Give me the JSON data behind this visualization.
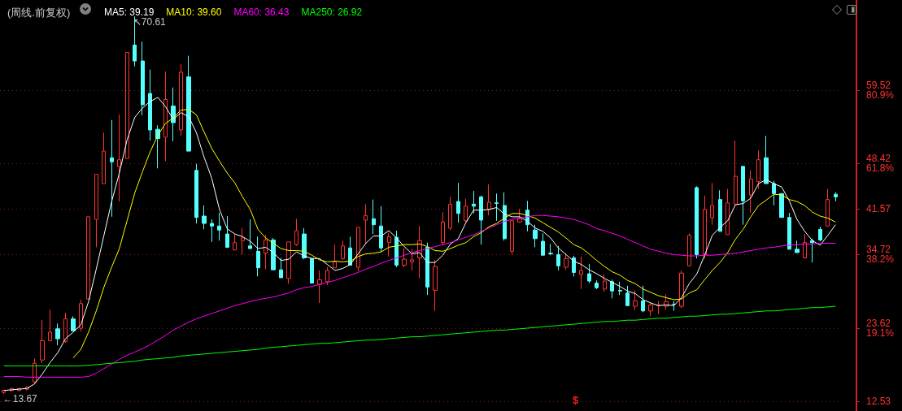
{
  "chart_data": {
    "type": "candlestick",
    "title": "(周线.前复权)",
    "categories": [
      null,
      null,
      null,
      null,
      null,
      null,
      null,
      null,
      null,
      null,
      null,
      null,
      null,
      null,
      null,
      null,
      null,
      null,
      null,
      null,
      null,
      null,
      null,
      null,
      null,
      null,
      null,
      null,
      null,
      null,
      null,
      null,
      null,
      null,
      null,
      null,
      null,
      null,
      null,
      null,
      null,
      null,
      null,
      null,
      null,
      null,
      null,
      null,
      null,
      null,
      null,
      null,
      null,
      null,
      null,
      null,
      null,
      null,
      null,
      null,
      null,
      null,
      null,
      null,
      null,
      null,
      null,
      null,
      null,
      null,
      null,
      null,
      null,
      null,
      null,
      null,
      null,
      null,
      null,
      null,
      null,
      null,
      null,
      null,
      null,
      null,
      null,
      null,
      null,
      null,
      null,
      null,
      null,
      null,
      null,
      null,
      null,
      null,
      null,
      null,
      null,
      null,
      null,
      null,
      null,
      null,
      null,
      null,
      null
    ],
    "ohlc": [
      [
        13.9,
        14.3,
        13.67,
        14.2
      ],
      [
        14.2,
        14.6,
        14.0,
        14.5
      ],
      [
        14.2,
        14.5,
        14.1,
        14.5
      ],
      [
        14.4,
        14.8,
        14.2,
        14.7
      ],
      [
        15.5,
        19.0,
        15.2,
        18.3
      ],
      [
        18.8,
        24.8,
        18.3,
        21.7
      ],
      [
        21.7,
        26.4,
        21.7,
        23.0
      ],
      [
        23.5,
        24.3,
        21.0,
        22.0
      ],
      [
        21.6,
        25.9,
        21.4,
        25.0
      ],
      [
        25.0,
        25.4,
        23.2,
        23.2
      ],
      [
        23.6,
        27.9,
        23.1,
        27.3
      ],
      [
        28.0,
        40.4,
        28.0,
        40.4
      ],
      [
        40.0,
        46.8,
        35.8,
        46.8
      ],
      [
        45.4,
        53.1,
        45.4,
        50.3
      ],
      [
        49.3,
        55.0,
        40.4,
        48.7
      ],
      [
        48.0,
        55.8,
        42.7,
        49.0
      ],
      [
        49.2,
        65.2,
        49.2,
        65.2
      ],
      [
        66.3,
        70.61,
        63.1,
        63.9
      ],
      [
        63.9,
        66.8,
        55.7,
        57.3
      ],
      [
        59.0,
        62.6,
        51.9,
        53.5
      ],
      [
        53.6,
        54.2,
        47.7,
        52.2
      ],
      [
        52.4,
        62.3,
        48.8,
        58.1
      ],
      [
        57.1,
        59.9,
        51.8,
        54.6
      ],
      [
        53.5,
        63.4,
        52.6,
        62.2
      ],
      [
        61.5,
        64.7,
        50.3,
        50.3
      ],
      [
        47.4,
        48.4,
        39.4,
        40.3
      ],
      [
        40.5,
        42.1,
        38.5,
        39.4
      ],
      [
        39.4,
        40.0,
        36.6,
        39.0
      ],
      [
        39.0,
        41.0,
        36.8,
        38.4
      ],
      [
        37.8,
        40.5,
        35.7,
        35.8
      ],
      [
        35.4,
        37.8,
        35.35,
        36.5
      ],
      [
        36.8,
        38.7,
        34.7,
        37.2
      ],
      [
        36.0,
        40.0,
        35.6,
        35.6
      ],
      [
        35.2,
        37.4,
        31.4,
        32.7
      ],
      [
        34.9,
        37.6,
        32.5,
        36.9
      ],
      [
        36.9,
        37.2,
        32.4,
        32.4
      ],
      [
        32.4,
        34.2,
        31.2,
        31.2
      ],
      [
        31.1,
        36.6,
        30.3,
        36.6
      ],
      [
        36.2,
        40.1,
        36.0,
        38.3
      ],
      [
        37.8,
        38.7,
        34.0,
        34.2
      ],
      [
        34.1,
        34.1,
        30.4,
        30.4
      ],
      [
        30.2,
        32.3,
        27.4,
        30.9
      ],
      [
        30.6,
        32.8,
        30.1,
        32.3
      ],
      [
        32.7,
        36.2,
        32.7,
        33.6
      ],
      [
        34.1,
        36.8,
        33.9,
        36.0
      ],
      [
        35.7,
        37.4,
        33.1,
        33.1
      ],
      [
        32.8,
        38.8,
        32.2,
        38.8
      ],
      [
        39.9,
        42.3,
        36.3,
        40.6
      ],
      [
        40.1,
        43.0,
        37.8,
        39.2
      ],
      [
        39.0,
        42.0,
        35.1,
        35.7
      ],
      [
        36.5,
        37.9,
        34.4,
        37.4
      ],
      [
        37.3,
        38.3,
        32.8,
        33.1
      ],
      [
        33.1,
        35.7,
        32.8,
        34.0
      ],
      [
        33.6,
        35.5,
        32.3,
        33.9
      ],
      [
        34.2,
        39.0,
        31.1,
        36.8
      ],
      [
        35.8,
        36.5,
        28.6,
        29.8
      ],
      [
        29.3,
        33.9,
        26.2,
        32.9
      ],
      [
        36.5,
        41.1,
        36.1,
        39.6
      ],
      [
        38.7,
        43.4,
        38.4,
        42.3
      ],
      [
        42.7,
        45.5,
        39.5,
        40.9
      ],
      [
        39.8,
        43.1,
        39.6,
        42.0
      ],
      [
        42.3,
        44.3,
        40.9,
        42.0
      ],
      [
        43.4,
        43.6,
        36.2,
        39.9
      ],
      [
        41.5,
        45.3,
        40.6,
        42.6
      ],
      [
        42.5,
        43.9,
        39.8,
        42.4
      ],
      [
        42.1,
        44.1,
        36.8,
        37.1
      ],
      [
        35.2,
        39.8,
        34.7,
        39.8
      ],
      [
        39.6,
        41.6,
        39.5,
        40.1
      ],
      [
        41.4,
        42.8,
        38.2,
        39.2
      ],
      [
        38.4,
        39.2,
        35.8,
        37.1
      ],
      [
        36.7,
        37.9,
        34.6,
        34.6
      ],
      [
        34.9,
        36.3,
        34.6,
        34.8
      ],
      [
        34.7,
        36.0,
        32.3,
        33.0
      ],
      [
        32.8,
        34.9,
        32.4,
        34.1
      ],
      [
        34.2,
        34.5,
        31.4,
        32.0
      ],
      [
        31.7,
        34.4,
        29.5,
        32.3
      ],
      [
        31.8,
        33.3,
        30.4,
        30.7
      ],
      [
        30.4,
        30.8,
        29.5,
        29.7
      ],
      [
        29.5,
        31.7,
        29.1,
        30.7
      ],
      [
        30.6,
        30.9,
        28.1,
        29.2
      ],
      [
        29.3,
        30.6,
        28.6,
        29.2
      ],
      [
        28.9,
        30.0,
        26.9,
        27.0
      ],
      [
        26.9,
        29.3,
        26.3,
        27.7
      ],
      [
        27.7,
        30.0,
        26.0,
        26.2
      ],
      [
        26.2,
        27.4,
        25.4,
        27.1
      ],
      [
        27.0,
        27.7,
        25.7,
        27.1
      ],
      [
        26.9,
        28.7,
        26.4,
        27.6
      ],
      [
        27.2,
        27.7,
        26.2,
        27.2
      ],
      [
        26.9,
        32.3,
        26.6,
        31.9
      ],
      [
        33.0,
        37.9,
        33.0,
        37.6
      ],
      [
        44.8,
        45.0,
        34.1,
        34.7
      ],
      [
        34.7,
        43.6,
        34.1,
        41.5
      ],
      [
        40.3,
        45.5,
        39.2,
        42.1
      ],
      [
        43.0,
        44.4,
        38.2,
        38.2
      ],
      [
        37.7,
        44.6,
        37.7,
        42.5
      ],
      [
        42.3,
        51.9,
        42.3,
        46.5
      ],
      [
        48.0,
        48.0,
        39.2,
        42.8
      ],
      [
        43.7,
        47.4,
        41.0,
        46.1
      ],
      [
        45.7,
        50.4,
        44.6,
        49.0
      ],
      [
        49.3,
        52.6,
        45.4,
        45.4
      ],
      [
        45.4,
        45.8,
        42.1,
        43.9
      ],
      [
        43.9,
        43.9,
        40.3,
        40.3
      ],
      [
        40.3,
        41.0,
        35.5,
        35.5
      ],
      [
        35.5,
        36.8,
        35.0,
        35.0
      ],
      [
        34.2,
        37.8,
        34.1,
        36.5
      ],
      [
        36.8,
        37.1,
        33.5,
        36.5
      ],
      [
        38.5,
        38.9,
        36.7,
        36.9
      ],
      [
        39.0,
        44.6,
        39.0,
        43.0
      ],
      [
        43.8,
        44.1,
        42.7,
        43.4
      ]
    ],
    "series": [
      {
        "type": "line",
        "name": "MA5: 39.19",
        "color": "#ffffff",
        "values": [
          14.2,
          14.3,
          14.4,
          14.5,
          15.2,
          16.7,
          18.4,
          19.9,
          22.0,
          23.0,
          24.1,
          27.6,
          32.5,
          37.6,
          42.7,
          47.0,
          52.0,
          55.4,
          56.8,
          57.8,
          58.4,
          57.0,
          55.1,
          56.1,
          55.5,
          53.1,
          49.4,
          46.2,
          41.5,
          38.6,
          37.8,
          37.4,
          36.7,
          35.6,
          35.8,
          35.0,
          33.8,
          34.0,
          35.1,
          34.5,
          34.1,
          34.1,
          33.2,
          32.3,
          32.6,
          33.2,
          34.8,
          36.4,
          37.5,
          37.5,
          38.3,
          37.2,
          35.9,
          34.8,
          35.0,
          33.5,
          33.5,
          34.6,
          36.3,
          37.1,
          39.5,
          41.4,
          41.4,
          41.5,
          41.8,
          40.8,
          40.4,
          40.4,
          39.7,
          38.7,
          38.2,
          37.2,
          35.7,
          34.7,
          33.7,
          33.2,
          32.4,
          31.8,
          31.1,
          30.5,
          29.9,
          29.2,
          28.8,
          27.9,
          27.4,
          27.0,
          27.1,
          27.0,
          28.2,
          30.3,
          31.8,
          34.6,
          37.6,
          38.8,
          39.8,
          42.2,
          42.4,
          43.2,
          45.4,
          46.0,
          45.4,
          44.9,
          42.8,
          40.0,
          38.2,
          36.8,
          36.1,
          37.6,
          39.2
        ]
      },
      {
        "type": "line",
        "name": "MA10: 39.60",
        "color": "#ffff00",
        "values": [
          null,
          null,
          null,
          null,
          null,
          null,
          null,
          null,
          null,
          19.1,
          20.4,
          23.0,
          26.2,
          29.8,
          32.8,
          35.6,
          39.8,
          44.0,
          47.2,
          50.2,
          52.7,
          54.5,
          55.3,
          56.5,
          56.6,
          55.8,
          53.2,
          50.7,
          48.8,
          47.0,
          45.5,
          43.4,
          41.5,
          38.5,
          37.2,
          36.4,
          35.6,
          35.3,
          35.3,
          35.2,
          34.6,
          33.9,
          33.6,
          33.7,
          33.6,
          33.7,
          34.4,
          34.8,
          34.9,
          35.1,
          35.8,
          36.0,
          36.2,
          36.2,
          36.3,
          35.9,
          35.3,
          35.2,
          35.6,
          36.1,
          36.5,
          37.4,
          38.0,
          38.9,
          39.4,
          40.2,
          40.9,
          40.9,
          40.6,
          40.2,
          39.5,
          38.8,
          38.1,
          37.2,
          36.2,
          35.7,
          34.8,
          33.8,
          32.9,
          32.1,
          31.6,
          30.8,
          30.3,
          29.5,
          29.0,
          28.5,
          28.2,
          27.9,
          28.0,
          28.9,
          29.4,
          30.9,
          32.3,
          33.5,
          35.0,
          37.0,
          38.5,
          40.4,
          42.1,
          42.9,
          43.8,
          43.7,
          43.0,
          42.7,
          42.1,
          41.1,
          40.5,
          40.2,
          39.6
        ]
      },
      {
        "type": "line",
        "name": "MA60: 36.43",
        "color": "#ff00ff",
        "values": [
          16.3,
          16.3,
          16.3,
          16.2,
          16.2,
          16.2,
          16.2,
          16.2,
          16.2,
          16.2,
          16.2,
          16.3,
          16.8,
          17.5,
          18.2,
          18.9,
          19.5,
          20.0,
          20.5,
          21.1,
          21.8,
          22.5,
          23.3,
          23.9,
          24.5,
          25.0,
          25.4,
          25.8,
          26.2,
          26.6,
          27.0,
          27.3,
          27.6,
          27.9,
          28.1,
          28.3,
          28.6,
          28.9,
          29.4,
          29.7,
          29.9,
          30.2,
          30.5,
          30.8,
          31.2,
          31.6,
          32.0,
          32.5,
          32.9,
          33.4,
          33.8,
          34.2,
          34.6,
          35.0,
          35.3,
          35.6,
          35.9,
          36.2,
          36.5,
          36.9,
          37.3,
          37.7,
          38.2,
          38.7,
          39.2,
          39.7,
          40.0,
          40.2,
          40.4,
          40.6,
          40.6,
          40.5,
          40.4,
          40.2,
          40.0,
          39.6,
          39.2,
          38.6,
          38.3,
          37.9,
          37.5,
          37.0,
          36.5,
          36.0,
          35.5,
          35.2,
          34.9,
          34.7,
          34.6,
          34.5,
          34.5,
          34.6,
          34.6,
          34.7,
          34.8,
          34.9,
          35.1,
          35.3,
          35.5,
          35.7,
          35.8,
          36.0,
          36.1,
          36.2,
          36.3,
          36.3,
          36.4,
          36.4,
          36.4
        ]
      },
      {
        "type": "line",
        "name": "MA250: 26.92",
        "color": "#00ff00",
        "values": [
          17.9,
          17.9,
          17.9,
          17.9,
          17.9,
          17.9,
          17.9,
          17.9,
          17.9,
          17.9,
          17.9,
          18.0,
          18.1,
          18.2,
          18.3,
          18.4,
          18.5,
          18.6,
          18.8,
          18.9,
          19.0,
          19.1,
          19.2,
          19.4,
          19.5,
          19.6,
          19.7,
          19.8,
          19.9,
          20.0,
          20.1,
          20.2,
          20.3,
          20.4,
          20.6,
          20.7,
          20.8,
          20.9,
          21.0,
          21.1,
          21.2,
          21.3,
          21.3,
          21.4,
          21.5,
          21.6,
          21.7,
          21.8,
          21.8,
          21.9,
          22.0,
          22.1,
          22.2,
          22.3,
          22.3,
          22.4,
          22.5,
          22.6,
          22.7,
          22.8,
          22.9,
          23.0,
          23.1,
          23.2,
          23.3,
          23.3,
          23.4,
          23.5,
          23.6,
          23.7,
          23.8,
          23.9,
          24.0,
          24.1,
          24.2,
          24.3,
          24.4,
          24.5,
          24.6,
          24.6,
          24.7,
          24.8,
          24.8,
          24.9,
          25.0,
          25.1,
          25.1,
          25.2,
          25.3,
          25.4,
          25.4,
          25.5,
          25.6,
          25.7,
          25.7,
          25.8,
          25.9,
          26.0,
          26.1,
          26.2,
          26.2,
          26.3,
          26.4,
          26.5,
          26.6,
          26.7,
          26.7,
          26.8,
          26.9
        ]
      }
    ],
    "ylim": [
      11.1,
      73.1
    ],
    "yticks": [
      {
        "value": 12.53,
        "label": "12.53"
      },
      {
        "value": 23.62,
        "label": "23.62\n19.1%"
      },
      {
        "value": 34.72,
        "label": "34.72\n38.2%"
      },
      {
        "value": 41.57,
        "label": "41.57"
      },
      {
        "value": 48.42,
        "label": "48.42\n61.8%"
      },
      {
        "value": 59.52,
        "label": "59.52\n80.9%"
      }
    ],
    "grid": "y",
    "legend": "top left",
    "tick_labels": "y",
    "annotations": [
      "↖70.61",
      {
        "text": "←13.67",
        "y": 13.67
      },
      "$"
    ]
  }
}
